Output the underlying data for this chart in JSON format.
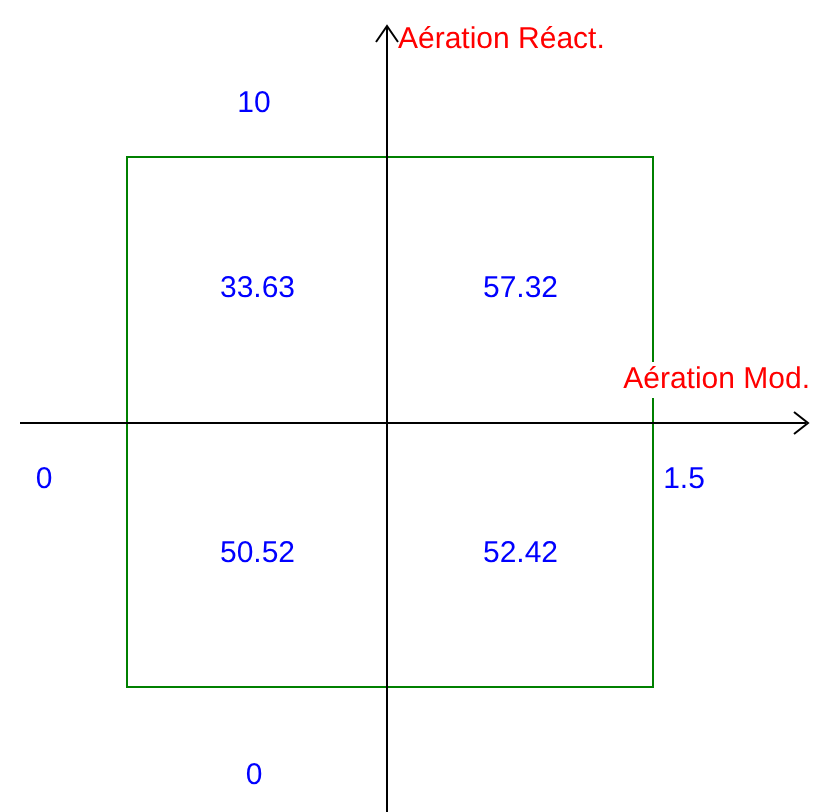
{
  "chart_data": {
    "type": "heatmap",
    "xlabel": "Aération Mod.",
    "ylabel": "Aération Réact.",
    "data_labels": true,
    "categories": [
      "0",
      "1.5"
    ],
    "y_categories": [
      "10",
      "0"
    ],
    "cells": [
      [
        33.63,
        57.32
      ],
      [
        50.52,
        52.42
      ]
    ]
  }
}
